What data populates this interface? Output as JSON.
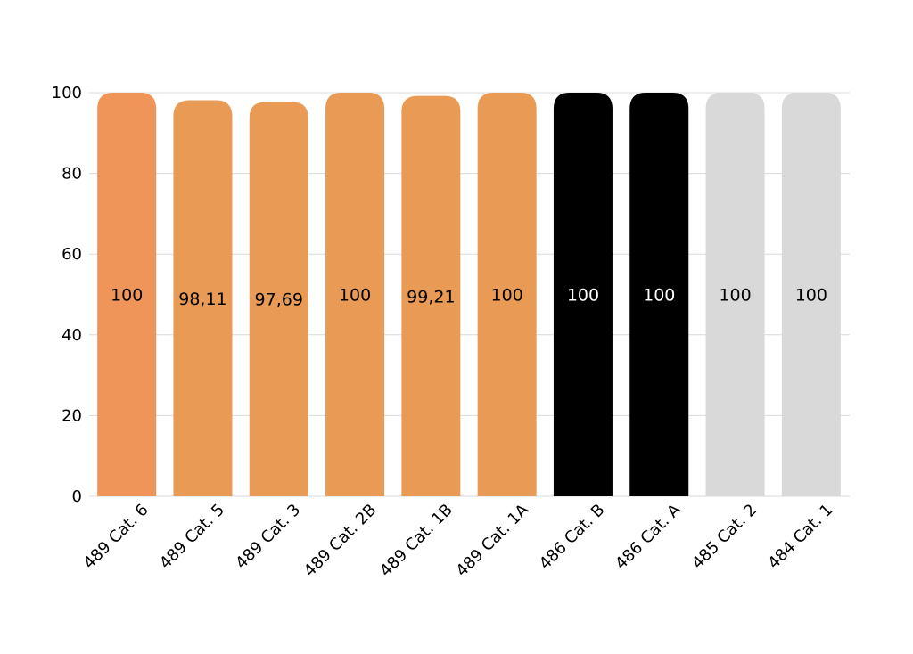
{
  "chart_data": {
    "type": "bar",
    "title": "",
    "xlabel": "",
    "ylabel": "",
    "ylim": [
      0,
      100
    ],
    "yticks": [
      0,
      20,
      40,
      60,
      80,
      100
    ],
    "grid": true,
    "legend": "none",
    "categories": [
      "489 Cat. 6",
      "489 Cat. 5",
      "489 Cat. 3",
      "489 Cat. 2B",
      "489 Cat. 1B",
      "489 Cat. 1A",
      "486 Cat. B",
      "486 Cat. A",
      "485 Cat. 2",
      "484 Cat. 1"
    ],
    "values": [
      100,
      98.11,
      97.69,
      100,
      99.21,
      100,
      100,
      100,
      100,
      100
    ],
    "data_labels": [
      "100",
      "98,11",
      "97,69",
      "100",
      "99,21",
      "100",
      "100",
      "100",
      "100",
      "100"
    ],
    "bar_colors": [
      "#f0955a",
      "#e99b55",
      "#e99b55",
      "#e99b55",
      "#e99b55",
      "#e99b55",
      "#000000",
      "#000000",
      "#d9d9d9",
      "#d9d9d9"
    ],
    "label_colors": [
      "#000000",
      "#000000",
      "#000000",
      "#000000",
      "#000000",
      "#000000",
      "#ffffff",
      "#ffffff",
      "#000000",
      "#000000"
    ]
  }
}
